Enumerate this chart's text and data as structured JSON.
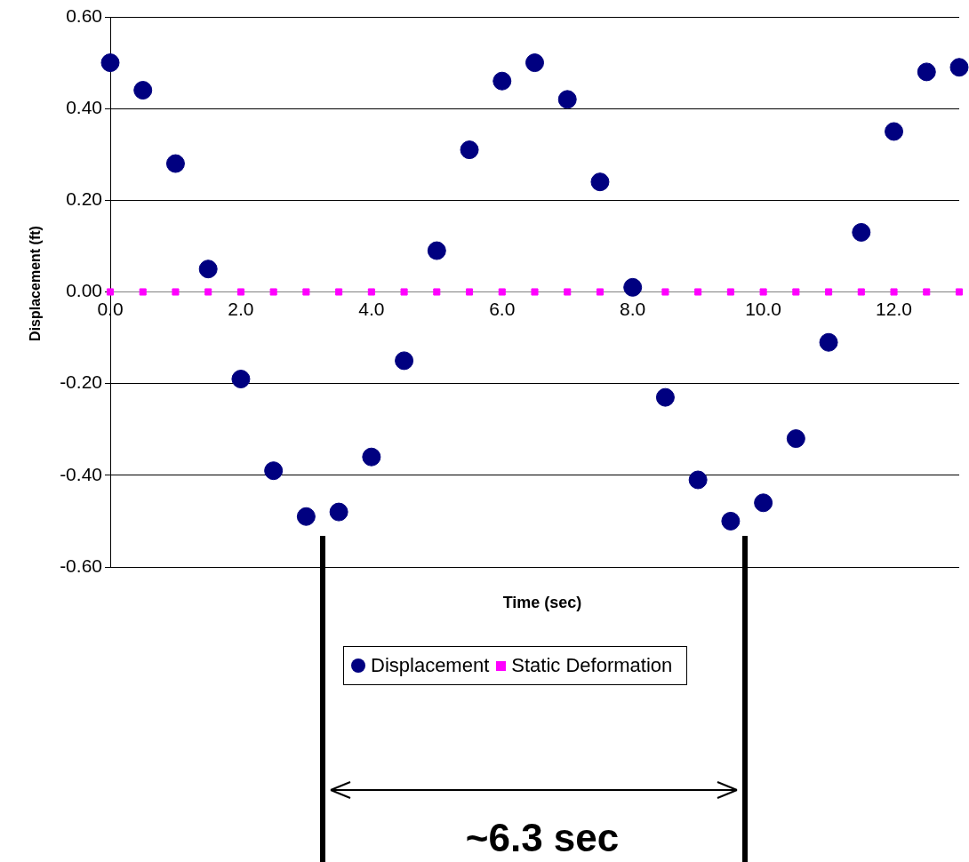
{
  "chart_data": {
    "type": "scatter",
    "xlabel": "Time (sec)",
    "ylabel": "Displacement (ft)",
    "x": [
      0,
      0.5,
      1,
      1.5,
      2,
      2.5,
      3,
      3.5,
      4,
      4.5,
      5,
      5.5,
      6,
      6.5,
      7,
      7.5,
      8,
      8.5,
      9,
      9.5,
      10,
      10.5,
      11,
      11.5,
      12,
      12.5,
      13
    ],
    "series": [
      {
        "name": "Displacement",
        "color": "#000080",
        "marker": "circle",
        "values": [
          0.5,
          0.44,
          0.28,
          0.05,
          -0.19,
          -0.39,
          -0.49,
          -0.48,
          -0.36,
          -0.15,
          0.09,
          0.31,
          0.46,
          0.5,
          0.42,
          0.24,
          0.01,
          -0.23,
          -0.41,
          -0.5,
          -0.46,
          -0.32,
          -0.11,
          0.13,
          0.35,
          0.48,
          0.49
        ]
      },
      {
        "name": "Static Deformation",
        "color": "#ff00ff",
        "marker": "square",
        "values": [
          0,
          0,
          0,
          0,
          0,
          0,
          0,
          0,
          0,
          0,
          0,
          0,
          0,
          0,
          0,
          0,
          null,
          0,
          0,
          0,
          0,
          0,
          0,
          0,
          0,
          0,
          0
        ]
      }
    ],
    "xlim": [
      0,
      13
    ],
    "xticks": [
      {
        "value": 0,
        "label": "0.0"
      },
      {
        "value": 2,
        "label": "2.0"
      },
      {
        "value": 4,
        "label": "4.0"
      },
      {
        "value": 6,
        "label": "6.0"
      },
      {
        "value": 8,
        "label": "8.0"
      },
      {
        "value": 10,
        "label": "10.0"
      },
      {
        "value": 12,
        "label": "12.0"
      }
    ],
    "ylim": [
      -0.6,
      0.6
    ],
    "yticks": [
      {
        "value": -0.6,
        "label": "-0.60"
      },
      {
        "value": -0.4,
        "label": "-0.40"
      },
      {
        "value": -0.2,
        "label": "-0.20"
      },
      {
        "value": 0,
        "label": "0.00"
      },
      {
        "value": 0.2,
        "label": "0.20"
      },
      {
        "value": 0.4,
        "label": "0.40"
      },
      {
        "value": 0.6,
        "label": "0.60"
      }
    ],
    "grid": "y",
    "legend": "bottom",
    "annotations": [
      "~6.3 sec"
    ]
  }
}
